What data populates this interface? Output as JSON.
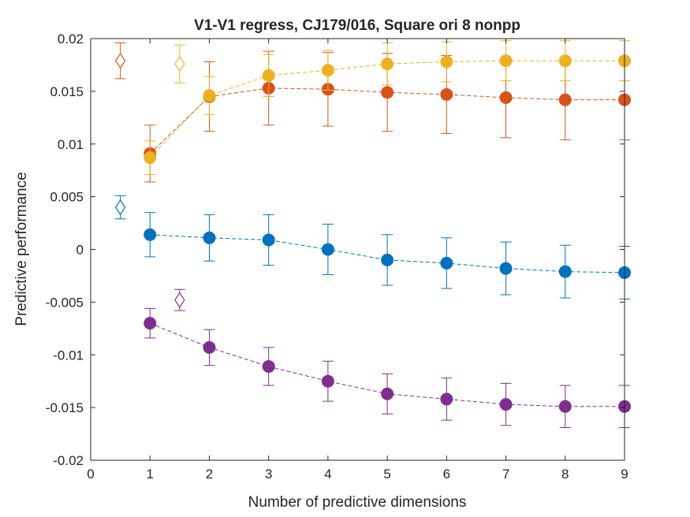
{
  "chart_data": {
    "type": "scatter",
    "title": "V1-V1 regress, CJ179/016, Square ori 8 nonpp",
    "xlabel": "Number of predictive dimensions",
    "ylabel": "Predictive performance",
    "xlim": [
      0,
      9
    ],
    "ylim": [
      -0.02,
      0.02
    ],
    "xticks": [
      0,
      1,
      2,
      3,
      4,
      5,
      6,
      7,
      8,
      9
    ],
    "yticks": [
      -0.02,
      -0.015,
      -0.01,
      -0.005,
      0,
      0.005,
      0.01,
      0.015,
      0.02
    ],
    "ytick_labels": [
      "-0.02",
      "-0.015",
      "-0.01",
      "-0.005",
      "0",
      "0.005",
      "0.01",
      "0.015",
      "0.02"
    ],
    "grid": false,
    "legend": "none",
    "series": [
      {
        "color": "#0072BD",
        "x": [
          1,
          2,
          3,
          4,
          5,
          6,
          7,
          8,
          9
        ],
        "y": [
          0.0014,
          0.0011,
          0.0009,
          0.0,
          -0.001,
          -0.0013,
          -0.0018,
          -0.0021,
          -0.0022
        ],
        "err": [
          0.0021,
          0.0022,
          0.0024,
          0.0024,
          0.0024,
          0.0024,
          0.0025,
          0.0025,
          0.0025
        ],
        "ref_x": 0.5,
        "ref_y": 0.004,
        "ref_err": 0.0011
      },
      {
        "color": "#D95319",
        "x": [
          1,
          2,
          3,
          4,
          5,
          6,
          7,
          8,
          9
        ],
        "y": [
          0.0091,
          0.0145,
          0.0153,
          0.0152,
          0.0149,
          0.0147,
          0.0144,
          0.0142,
          0.0142
        ],
        "err": [
          0.0027,
          0.0033,
          0.0035,
          0.0035,
          0.0037,
          0.0037,
          0.0038,
          0.0038,
          0.0038
        ],
        "ref_x": 0.5,
        "ref_y": 0.0179,
        "ref_err": 0.0017
      },
      {
        "color": "#EDB120",
        "x": [
          1,
          2,
          3,
          4,
          5,
          6,
          7,
          8,
          9
        ],
        "y": [
          0.0087,
          0.0146,
          0.0165,
          0.017,
          0.0176,
          0.0178,
          0.0179,
          0.0179,
          0.0179
        ],
        "err": [
          0.0016,
          0.0018,
          0.002,
          0.0019,
          0.002,
          0.0019,
          0.0019,
          0.0019,
          0.0019
        ],
        "ref_x": 1.5,
        "ref_y": 0.0176,
        "ref_err": 0.0018
      },
      {
        "color": "#7E2F8E",
        "x": [
          1,
          2,
          3,
          4,
          5,
          6,
          7,
          8,
          9
        ],
        "y": [
          -0.007,
          -0.0093,
          -0.0111,
          -0.0125,
          -0.0137,
          -0.0142,
          -0.0147,
          -0.0149,
          -0.0149
        ],
        "err": [
          0.0014,
          0.0017,
          0.0018,
          0.0019,
          0.0019,
          0.002,
          0.002,
          0.002,
          0.002
        ],
        "ref_x": 1.5,
        "ref_y": -0.0048,
        "ref_err": 0.001
      }
    ]
  }
}
